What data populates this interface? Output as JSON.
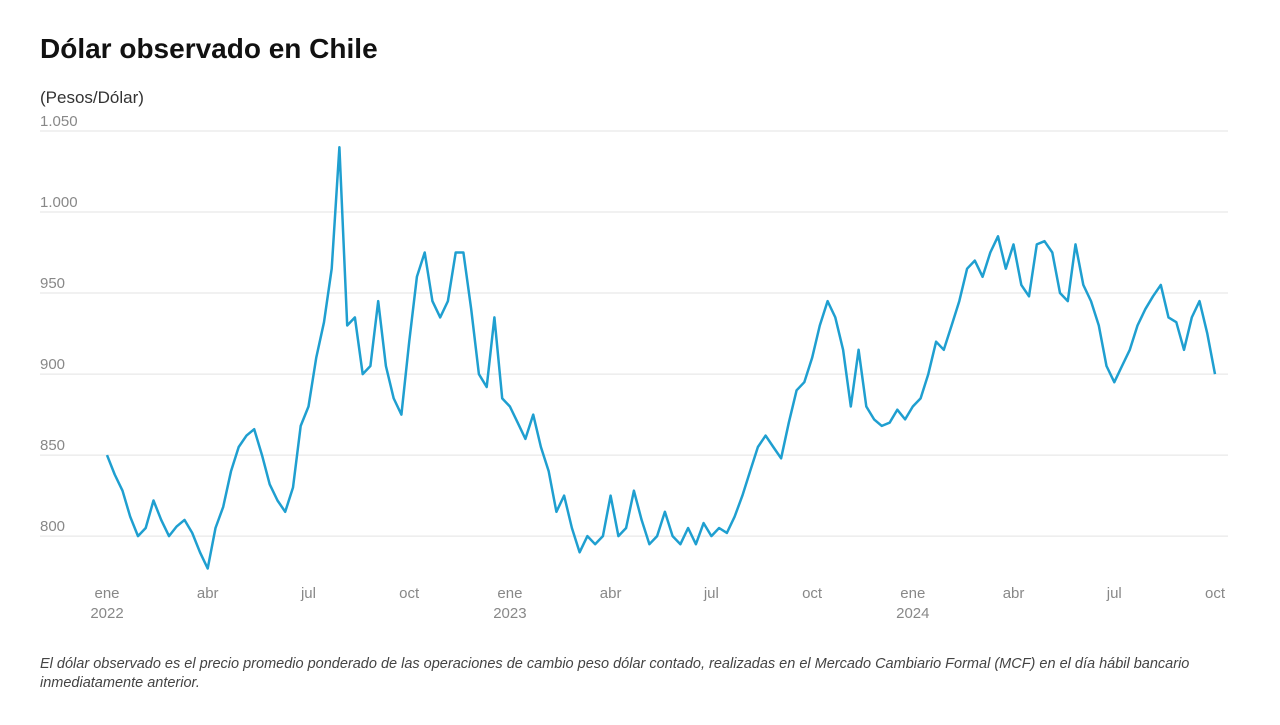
{
  "chart_data": {
    "type": "line",
    "title": "Dólar observado en Chile",
    "subtitle": "(Pesos/Dólar)",
    "note": "El dólar observado es el precio promedio ponderado de las operaciones de cambio peso dólar contado, realizadas en el Mercado Cambiario Formal (MCF) en el día hábil bancario inmediatamente anterior.",
    "categories": [
      "ene 2022",
      null,
      null,
      null,
      null,
      null,
      null,
      null,
      null,
      null,
      null,
      null,
      null,
      "abr",
      null,
      null,
      null,
      null,
      null,
      null,
      null,
      null,
      null,
      null,
      null,
      null,
      "jul",
      null,
      null,
      null,
      null,
      null,
      null,
      null,
      null,
      null,
      null,
      null,
      null,
      "oct",
      null,
      null,
      null,
      null,
      null,
      null,
      null,
      null,
      null,
      null,
      null,
      null,
      "ene 2023",
      null,
      null,
      null,
      null,
      null,
      null,
      null,
      null,
      null,
      null,
      null,
      null,
      "abr",
      null,
      null,
      null,
      null,
      null,
      null,
      null,
      null,
      null,
      null,
      null,
      null,
      "jul",
      null,
      null,
      null,
      null,
      null,
      null,
      null,
      null,
      null,
      null,
      null,
      null,
      "oct",
      null,
      null,
      null,
      null,
      null,
      null,
      null,
      null,
      null,
      null,
      null,
      null,
      "ene 2024",
      null,
      null,
      null,
      null,
      null,
      null,
      null,
      null,
      null,
      null,
      null,
      null,
      "abr",
      null,
      null,
      null,
      null,
      null,
      null,
      null,
      null,
      null,
      null,
      null,
      null,
      "jul",
      null,
      null,
      null,
      null,
      null,
      null,
      null,
      null,
      null,
      null,
      null,
      null,
      "oct"
    ],
    "series": [
      {
        "name": "Dólar observado",
        "color": "#1f9fd0",
        "values": [
          850,
          838,
          828,
          812,
          800,
          805,
          822,
          810,
          800,
          806,
          810,
          802,
          790,
          780,
          805,
          818,
          840,
          855,
          862,
          866,
          850,
          832,
          822,
          815,
          830,
          868,
          880,
          910,
          932,
          965,
          1040,
          930,
          935,
          900,
          905,
          945,
          905,
          885,
          875,
          920,
          960,
          975,
          945,
          935,
          945,
          975,
          975,
          940,
          900,
          892,
          935,
          885,
          880,
          870,
          860,
          875,
          855,
          840,
          815,
          825,
          805,
          790,
          800,
          795,
          800,
          825,
          800,
          805,
          828,
          810,
          795,
          800,
          815,
          800,
          795,
          805,
          795,
          808,
          800,
          805,
          802,
          812,
          825,
          840,
          855,
          862,
          855,
          848,
          870,
          890,
          895,
          910,
          930,
          945,
          935,
          915,
          880,
          915,
          880,
          872,
          868,
          870,
          878,
          872,
          880,
          885,
          900,
          920,
          915,
          930,
          945,
          965,
          970,
          960,
          975,
          985,
          965,
          980,
          955,
          948,
          980,
          982,
          975,
          950,
          945,
          980,
          955,
          945,
          930,
          905,
          895,
          905,
          915,
          930,
          940,
          948,
          955,
          935,
          932,
          915,
          935,
          945,
          925,
          900
        ]
      }
    ],
    "ylim": [
      776,
      1050
    ],
    "yticks": [
      800,
      850,
      900,
      950,
      {
        "value": 1000,
        "label": "1.000"
      },
      {
        "value": 1050,
        "label": "1.050"
      }
    ],
    "grid": true
  }
}
